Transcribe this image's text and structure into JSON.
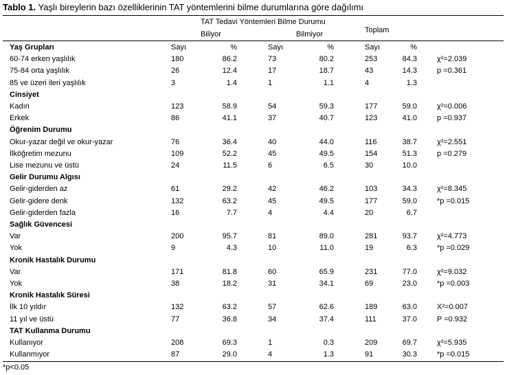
{
  "title": {
    "bold": "Tablo 1.",
    "text": " Yaşlı bireylerin bazı özelliklerinin TAT yöntemlerini bilme durumlarına göre dağılımı"
  },
  "header": {
    "group": "TAT Tedavi Yöntemleri Bilme Durumu",
    "knows": "Biliyor",
    "not_knows": "Bilmiyor",
    "total": "Toplam"
  },
  "rows": [
    {
      "label": "Yaş Grupları",
      "group": true,
      "c": [
        "Sayı",
        "%",
        "Sayı",
        "%",
        "Sayı",
        "%"
      ]
    },
    {
      "label": "60-74 erken yaşlılık",
      "c": [
        "180",
        "86.2",
        "73",
        "80.2",
        "253",
        "84.3"
      ],
      "stat": "χ²=2.039"
    },
    {
      "label": "75-84 orta yaşlılık",
      "c": [
        "26",
        "12.4",
        "17",
        "18.7",
        "43",
        "14.3"
      ],
      "stat": "p =0.361"
    },
    {
      "label": "85 ve üzeri ileri yaşlılık",
      "c": [
        "3",
        "1.4",
        "1",
        "1.1",
        "4",
        "1.3"
      ]
    },
    {
      "label": "Cinsiyet",
      "group": true
    },
    {
      "label": "Kadın",
      "c": [
        "123",
        "58.9",
        "54",
        "59.3",
        "177",
        "59.0"
      ],
      "stat": "χ²=0.006"
    },
    {
      "label": "Erkek",
      "c": [
        "86",
        "41.1",
        "37",
        "40.7",
        "123",
        "41.0"
      ],
      "stat": "p =0.937"
    },
    {
      "label": "Öğrenim Durumu",
      "group": true
    },
    {
      "label": "Okur-yazar değil ve okur-yazar",
      "c": [
        "76",
        "36.4",
        "40",
        "44.0",
        "116",
        "38.7"
      ],
      "stat": "χ²=2.551"
    },
    {
      "label": "İlköğretim mezunu",
      "c": [
        "109",
        "52.2",
        "45",
        "49.5",
        "154",
        "51.3"
      ],
      "stat": "p =0.279"
    },
    {
      "label": "Lise mezunu ve üstü",
      "c": [
        "24",
        "11.5",
        "6",
        "6.5",
        "30",
        "10.0"
      ]
    },
    {
      "label": "Gelir Durumu Algısı",
      "group": true
    },
    {
      "label": "Gelir-giderden az",
      "c": [
        "61",
        "29.2",
        "42",
        "46.2",
        "103",
        "34.3"
      ],
      "stat": "χ²=8.345"
    },
    {
      "label": "Gelir-gidere denk",
      "c": [
        "132",
        "63.2",
        "45",
        "49.5",
        "177",
        "59.0"
      ],
      "stat": "*p =0.015"
    },
    {
      "label": "Gelir-giderden fazla",
      "c": [
        "16",
        "7.7",
        "4",
        "4.4",
        "20",
        "6.7"
      ]
    },
    {
      "label": "Sağlık Güvencesi",
      "group": true
    },
    {
      "label": "Var",
      "c": [
        "200",
        "95.7",
        "81",
        "89.0",
        "281",
        "93.7"
      ],
      "stat": "χ²=4.773"
    },
    {
      "label": "Yok",
      "c": [
        "9",
        "4.3",
        "10",
        "11.0",
        "19",
        "6.3"
      ],
      "stat": "*p =0.029"
    },
    {
      "label": "Kronik Hastalık Durumu",
      "group": true
    },
    {
      "label": "Var",
      "c": [
        "171",
        "81.8",
        "60",
        "65.9",
        "231",
        "77.0"
      ],
      "stat": "χ²=9.032"
    },
    {
      "label": "Yok",
      "c": [
        "38",
        "18.2",
        "31",
        "34.1",
        "69",
        "23.0"
      ],
      "stat": "*p =0.003"
    },
    {
      "label": "Kronik Hastalık Süresi",
      "group": true
    },
    {
      "label": "İlk 10 yıldır",
      "c": [
        "132",
        "63.2",
        "57",
        "62.6",
        "189",
        "63.0"
      ],
      "stat": "X²=0.007"
    },
    {
      "label": "11 yıl ve üstü",
      "c": [
        "77",
        "36.8",
        "34",
        "37.4",
        "111",
        "37.0"
      ],
      "stat": "P =0.932"
    },
    {
      "label": "TAT Kullanma Durumu",
      "group": true
    },
    {
      "label": "Kullanıyor",
      "c": [
        "208",
        "69.3",
        "1",
        "0.3",
        "209",
        "69.7"
      ],
      "stat": "χ²=5.935"
    },
    {
      "label": "Kullanmıyor",
      "c": [
        "87",
        "29.0",
        "4",
        "1.3",
        "91",
        "30.3"
      ],
      "stat": "*p =0.015"
    }
  ],
  "footnote": "*p<0.05"
}
